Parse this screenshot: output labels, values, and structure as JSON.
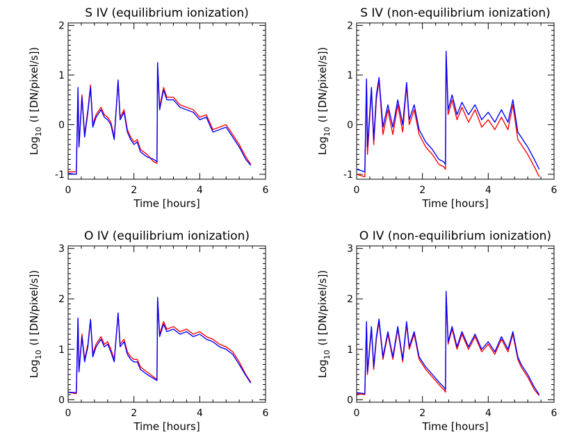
{
  "chart_data": [
    {
      "type": "line",
      "title": "S IV (equilibrium ionization)",
      "xlabel": "Time [hours]",
      "ylabel_prefix": "Log",
      "ylabel_sub": "10",
      "ylabel_suffix": "(I [DN/pixel/s])",
      "xlim": [
        0,
        6
      ],
      "ylim": [
        -1.1,
        2.05
      ],
      "xticks": [
        "0",
        "2",
        "4",
        "6"
      ],
      "yticks": [
        "-1",
        "0",
        "1",
        "2"
      ],
      "series": [
        {
          "color": "#ff0000",
          "x": [
            0,
            0.25,
            0.3,
            0.33,
            0.42,
            0.5,
            0.6,
            0.68,
            0.75,
            0.85,
            1.0,
            1.1,
            1.2,
            1.3,
            1.4,
            1.52,
            1.58,
            1.7,
            1.8,
            1.9,
            2.0,
            2.1,
            2.2,
            2.4,
            2.6,
            2.7,
            2.72,
            2.78,
            2.9,
            3.0,
            3.2,
            3.4,
            3.6,
            3.8,
            4.0,
            4.2,
            4.4,
            4.6,
            4.8,
            5.0,
            5.2,
            5.4,
            5.55
          ],
          "y": [
            -0.95,
            -0.95,
            0.7,
            -0.4,
            0.6,
            -0.2,
            0.3,
            0.8,
            0.0,
            0.2,
            0.35,
            0.2,
            0.15,
            0.05,
            -0.25,
            0.85,
            0.15,
            0.3,
            -0.1,
            -0.25,
            -0.35,
            -0.3,
            -0.5,
            -0.6,
            -0.75,
            -0.78,
            1.2,
            0.35,
            0.75,
            0.55,
            0.55,
            0.4,
            0.35,
            0.3,
            0.15,
            0.2,
            -0.1,
            -0.05,
            0.0,
            -0.2,
            -0.4,
            -0.65,
            -0.8
          ]
        },
        {
          "color": "#0000ff",
          "x": [
            0,
            0.25,
            0.3,
            0.33,
            0.42,
            0.5,
            0.6,
            0.68,
            0.75,
            0.85,
            1.0,
            1.1,
            1.2,
            1.3,
            1.4,
            1.52,
            1.58,
            1.7,
            1.8,
            1.9,
            2.0,
            2.1,
            2.2,
            2.4,
            2.6,
            2.7,
            2.72,
            2.78,
            2.9,
            3.0,
            3.2,
            3.4,
            3.6,
            3.8,
            4.0,
            4.2,
            4.4,
            4.6,
            4.8,
            5.0,
            5.2,
            5.4,
            5.55
          ],
          "y": [
            -0.98,
            -1.0,
            0.75,
            -0.45,
            0.55,
            -0.25,
            0.25,
            0.75,
            -0.05,
            0.15,
            0.3,
            0.15,
            0.1,
            0.0,
            -0.3,
            0.9,
            0.1,
            0.25,
            -0.15,
            -0.3,
            -0.4,
            -0.35,
            -0.55,
            -0.65,
            -0.7,
            -0.75,
            1.25,
            0.3,
            0.7,
            0.5,
            0.5,
            0.35,
            0.3,
            0.25,
            0.1,
            0.15,
            -0.15,
            -0.1,
            -0.05,
            -0.25,
            -0.45,
            -0.7,
            -0.82
          ]
        }
      ]
    },
    {
      "type": "line",
      "title": "S IV (non-equilibrium ionization)",
      "xlabel": "Time [hours]",
      "ylabel_prefix": "Log",
      "ylabel_sub": "10",
      "ylabel_suffix": "(I [DN/pixel/s])",
      "xlim": [
        0,
        6
      ],
      "ylim": [
        -1.1,
        2.05
      ],
      "xticks": [
        "0",
        "2",
        "4",
        "6"
      ],
      "yticks": [
        "-1",
        "0",
        "1",
        "2"
      ],
      "series": [
        {
          "color": "#ff0000",
          "x": [
            0,
            0.25,
            0.3,
            0.33,
            0.45,
            0.52,
            0.6,
            0.68,
            0.8,
            0.95,
            1.1,
            1.25,
            1.4,
            1.52,
            1.6,
            1.75,
            1.9,
            2.1,
            2.3,
            2.5,
            2.65,
            2.7,
            2.72,
            2.78,
            2.9,
            3.05,
            3.2,
            3.4,
            3.6,
            3.8,
            4.0,
            4.2,
            4.4,
            4.6,
            4.75,
            4.9,
            5.0,
            5.2,
            5.4,
            5.55
          ],
          "y": [
            -1.0,
            -1.05,
            0.9,
            -0.6,
            0.7,
            -0.4,
            0.5,
            0.9,
            -0.2,
            0.3,
            -0.2,
            0.4,
            -0.15,
            0.8,
            0.0,
            0.3,
            -0.2,
            -0.45,
            -0.6,
            -0.8,
            -0.85,
            -0.9,
            1.45,
            0.2,
            0.5,
            0.1,
            0.35,
            0.05,
            0.3,
            -0.05,
            0.1,
            -0.1,
            0.15,
            -0.1,
            0.4,
            -0.3,
            -0.4,
            -0.6,
            -0.85,
            -1.05
          ]
        },
        {
          "color": "#0000ff",
          "x": [
            0,
            0.25,
            0.3,
            0.33,
            0.45,
            0.52,
            0.6,
            0.68,
            0.8,
            0.95,
            1.1,
            1.25,
            1.4,
            1.52,
            1.6,
            1.75,
            1.9,
            2.1,
            2.3,
            2.5,
            2.65,
            2.7,
            2.72,
            2.78,
            2.9,
            3.05,
            3.2,
            3.4,
            3.6,
            3.8,
            4.0,
            4.2,
            4.4,
            4.6,
            4.75,
            4.9,
            5.0,
            5.2,
            5.4,
            5.55
          ],
          "y": [
            -0.9,
            -0.95,
            0.92,
            -0.45,
            0.75,
            -0.3,
            0.6,
            0.95,
            -0.05,
            0.4,
            -0.05,
            0.5,
            0.0,
            0.85,
            0.1,
            0.4,
            -0.1,
            -0.35,
            -0.5,
            -0.7,
            -0.75,
            -0.8,
            1.48,
            0.3,
            0.6,
            0.2,
            0.45,
            0.2,
            0.4,
            0.1,
            0.25,
            0.05,
            0.3,
            0.05,
            0.5,
            -0.15,
            -0.25,
            -0.45,
            -0.7,
            -0.9
          ]
        }
      ]
    },
    {
      "type": "line",
      "title": "O IV (equilibrium ionization)",
      "xlabel": "Time [hours]",
      "ylabel_prefix": "Log",
      "ylabel_sub": "10",
      "ylabel_suffix": "(I [DN/pixel/s])",
      "xlim": [
        0,
        6
      ],
      "ylim": [
        -0.05,
        3.05
      ],
      "xticks": [
        "0",
        "2",
        "4",
        "6"
      ],
      "yticks": [
        "0",
        "1",
        "2",
        "3"
      ],
      "series": [
        {
          "color": "#ff0000",
          "x": [
            0,
            0.25,
            0.3,
            0.33,
            0.42,
            0.5,
            0.6,
            0.68,
            0.75,
            0.85,
            1.0,
            1.1,
            1.2,
            1.3,
            1.4,
            1.52,
            1.58,
            1.7,
            1.8,
            1.9,
            2.0,
            2.1,
            2.2,
            2.4,
            2.6,
            2.7,
            2.72,
            2.78,
            2.9,
            3.0,
            3.2,
            3.4,
            3.6,
            3.8,
            4.0,
            4.2,
            4.4,
            4.6,
            4.8,
            5.0,
            5.2,
            5.4,
            5.55
          ],
          "y": [
            0.15,
            0.12,
            1.6,
            0.6,
            1.3,
            0.8,
            1.1,
            1.6,
            0.9,
            1.1,
            1.25,
            1.1,
            1.15,
            1.0,
            0.8,
            1.7,
            1.1,
            1.2,
            0.95,
            0.85,
            0.8,
            0.8,
            0.65,
            0.55,
            0.45,
            0.4,
            2.0,
            1.3,
            1.55,
            1.4,
            1.45,
            1.35,
            1.4,
            1.3,
            1.35,
            1.25,
            1.2,
            1.1,
            1.05,
            0.95,
            0.75,
            0.5,
            0.35
          ]
        },
        {
          "color": "#0000ff",
          "x": [
            0,
            0.25,
            0.3,
            0.33,
            0.42,
            0.5,
            0.6,
            0.68,
            0.75,
            0.85,
            1.0,
            1.1,
            1.2,
            1.3,
            1.4,
            1.52,
            1.58,
            1.7,
            1.8,
            1.9,
            2.0,
            2.1,
            2.2,
            2.4,
            2.6,
            2.7,
            2.72,
            2.78,
            2.9,
            3.0,
            3.2,
            3.4,
            3.6,
            3.8,
            4.0,
            4.2,
            4.4,
            4.6,
            4.8,
            5.0,
            5.2,
            5.4,
            5.55
          ],
          "y": [
            0.15,
            0.14,
            1.62,
            0.55,
            1.25,
            0.75,
            1.05,
            1.58,
            0.85,
            1.05,
            1.2,
            1.05,
            1.1,
            0.95,
            0.75,
            1.72,
            1.05,
            1.15,
            0.9,
            0.8,
            0.75,
            0.75,
            0.6,
            0.5,
            0.42,
            0.38,
            2.03,
            1.25,
            1.5,
            1.35,
            1.4,
            1.3,
            1.35,
            1.25,
            1.3,
            1.2,
            1.15,
            1.05,
            1.0,
            0.9,
            0.7,
            0.48,
            0.33
          ]
        }
      ]
    },
    {
      "type": "line",
      "title": "O IV (non-equilibrium ionization)",
      "xlabel": "Time [hours]",
      "ylabel_prefix": "Log",
      "ylabel_sub": "10",
      "ylabel_suffix": "(I [DN/pixel/s])",
      "xlim": [
        0,
        6
      ],
      "ylim": [
        -0.05,
        3.05
      ],
      "xticks": [
        "0",
        "2",
        "4",
        "6"
      ],
      "yticks": [
        "0",
        "1",
        "2",
        "3"
      ],
      "series": [
        {
          "color": "#ff0000",
          "x": [
            0,
            0.25,
            0.3,
            0.33,
            0.45,
            0.52,
            0.6,
            0.68,
            0.8,
            0.95,
            1.1,
            1.25,
            1.4,
            1.52,
            1.6,
            1.75,
            1.9,
            2.1,
            2.3,
            2.5,
            2.65,
            2.7,
            2.72,
            2.78,
            2.9,
            3.05,
            3.2,
            3.4,
            3.6,
            3.8,
            4.0,
            4.2,
            4.4,
            4.6,
            4.75,
            4.9,
            5.0,
            5.2,
            5.4,
            5.55
          ],
          "y": [
            0.12,
            0.1,
            1.5,
            0.5,
            1.4,
            0.6,
            1.2,
            1.55,
            0.8,
            1.3,
            0.8,
            1.4,
            0.75,
            1.5,
            1.0,
            1.3,
            0.8,
            0.6,
            0.45,
            0.3,
            0.2,
            0.15,
            2.1,
            1.1,
            1.4,
            1.0,
            1.3,
            1.0,
            1.25,
            0.95,
            1.1,
            0.9,
            1.2,
            0.95,
            1.3,
            0.8,
            0.65,
            0.45,
            0.2,
            0.08
          ]
        },
        {
          "color": "#0000ff",
          "x": [
            0,
            0.25,
            0.3,
            0.33,
            0.45,
            0.52,
            0.6,
            0.68,
            0.8,
            0.95,
            1.1,
            1.25,
            1.4,
            1.52,
            1.6,
            1.75,
            1.9,
            2.1,
            2.3,
            2.5,
            2.65,
            2.7,
            2.72,
            2.78,
            2.9,
            3.05,
            3.2,
            3.4,
            3.6,
            3.8,
            4.0,
            4.2,
            4.4,
            4.6,
            4.75,
            4.9,
            5.0,
            5.2,
            5.4,
            5.55
          ],
          "y": [
            0.14,
            0.12,
            1.55,
            0.55,
            1.45,
            0.65,
            1.25,
            1.6,
            0.85,
            1.35,
            0.85,
            1.45,
            0.8,
            1.55,
            1.05,
            1.35,
            0.85,
            0.65,
            0.5,
            0.35,
            0.25,
            0.2,
            2.15,
            1.15,
            1.45,
            1.05,
            1.35,
            1.05,
            1.3,
            1.0,
            1.15,
            0.95,
            1.25,
            1.0,
            1.35,
            0.85,
            0.7,
            0.5,
            0.25,
            0.1
          ]
        }
      ]
    }
  ]
}
